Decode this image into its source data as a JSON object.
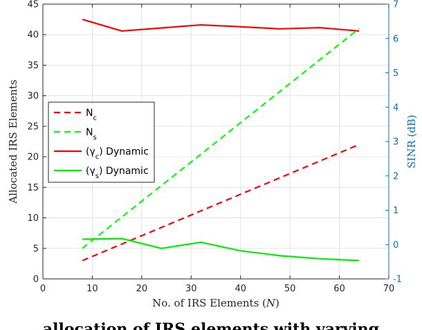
{
  "chart_data": {
    "type": "line",
    "xlabel": "No. of IRS Elements (N)",
    "ylabel_left": "Allocated IRS Elements",
    "ylabel_right": "SINR (dB)",
    "xlim": [
      0,
      70
    ],
    "ylim_left": [
      0,
      45
    ],
    "ylim_right": [
      -1,
      7
    ],
    "xticks": [
      0,
      10,
      20,
      30,
      40,
      50,
      60,
      70
    ],
    "yticks_left": [
      0,
      5,
      10,
      15,
      20,
      25,
      30,
      35,
      40,
      45
    ],
    "yticks_right": [
      -1,
      0,
      1,
      2,
      3,
      4,
      5,
      6,
      7
    ],
    "grid": true,
    "legend_position": "center-left",
    "series": [
      {
        "name": "N_c",
        "axis": "left",
        "style": "dashed",
        "color": "#ff0000",
        "x": [
          8,
          64
        ],
        "y": [
          3,
          22
        ]
      },
      {
        "name": "N_s",
        "axis": "left",
        "style": "dashed",
        "color": "#00ff00",
        "x": [
          8,
          64
        ],
        "y": [
          5,
          41
        ]
      },
      {
        "name": "(γ_c) Dynamic",
        "axis": "left",
        "style": "solid",
        "color": "#ff0000",
        "x": [
          8,
          16,
          24,
          32,
          40,
          48,
          56,
          64
        ],
        "y": [
          42.5,
          40.6,
          41.1,
          41.6,
          41.3,
          40.95,
          41.15,
          40.6
        ]
      },
      {
        "name": "(γ_s) Dynamic",
        "axis": "left",
        "style": "solid",
        "color": "#00ee00",
        "x": [
          8,
          16,
          24,
          32,
          40,
          48,
          56,
          64
        ],
        "y": [
          6.5,
          6.6,
          5.0,
          6.0,
          4.6,
          3.8,
          3.3,
          3.0
        ]
      }
    ]
  },
  "caption_fragment": "...allocation of IRS elements with varying..."
}
